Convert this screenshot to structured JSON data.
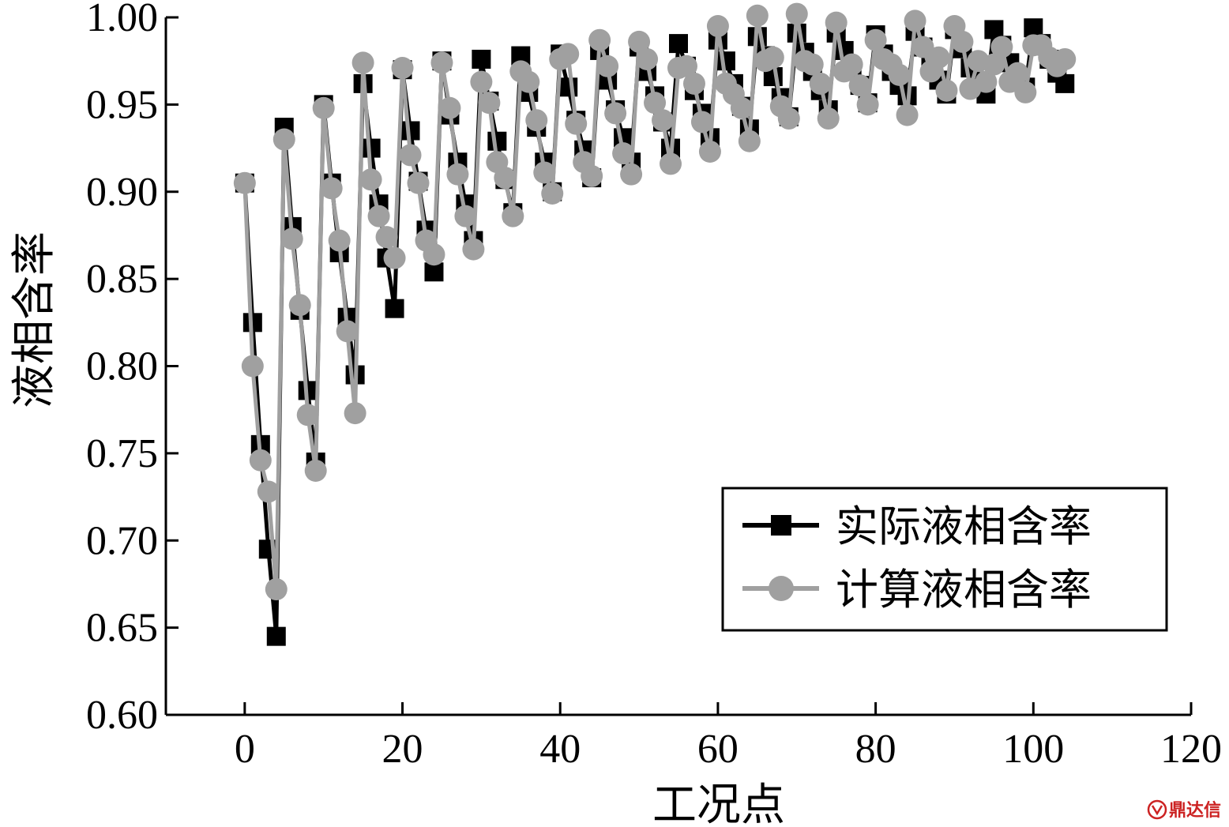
{
  "chart_data": {
    "type": "line",
    "title": "",
    "xlabel": "工况点",
    "ylabel": "液相含率",
    "xlim": [
      -10,
      120
    ],
    "ylim": [
      0.6,
      1.0
    ],
    "xticks": [
      "0",
      "20",
      "40",
      "60",
      "80",
      "100",
      "120"
    ],
    "yticks": [
      "0.60",
      "0.65",
      "0.70",
      "0.75",
      "0.80",
      "0.85",
      "0.90",
      "0.95",
      "1.00"
    ],
    "grid": false,
    "legend_position": "lower-right",
    "series": [
      {
        "name": "实际液相含率",
        "marker": "square",
        "color": "#000000",
        "x": [
          0,
          1,
          2,
          3,
          4,
          5,
          6,
          7,
          8,
          9,
          10,
          11,
          12,
          13,
          14,
          15,
          16,
          17,
          18,
          19,
          20,
          21,
          22,
          23,
          24,
          25,
          26,
          27,
          28,
          29,
          30,
          31,
          32,
          33,
          34,
          35,
          36,
          37,
          38,
          39,
          40,
          41,
          42,
          43,
          44,
          45,
          46,
          47,
          48,
          49,
          50,
          51,
          52,
          53,
          54,
          55,
          56,
          57,
          58,
          59,
          60,
          61,
          62,
          63,
          64,
          65,
          66,
          67,
          68,
          69,
          70,
          71,
          72,
          73,
          74,
          75,
          76,
          77,
          78,
          79,
          80,
          81,
          82,
          83,
          84,
          85,
          86,
          87,
          88,
          89,
          90,
          91,
          92,
          93,
          94,
          95,
          96,
          97,
          98,
          99,
          100,
          101,
          102,
          103,
          104
        ],
        "values": [
          0.905,
          0.825,
          0.755,
          0.695,
          0.645,
          0.937,
          0.88,
          0.832,
          0.786,
          0.745,
          0.95,
          0.905,
          0.865,
          0.828,
          0.795,
          0.962,
          0.925,
          0.893,
          0.862,
          0.833,
          0.97,
          0.935,
          0.906,
          0.878,
          0.854,
          0.975,
          0.944,
          0.917,
          0.893,
          0.872,
          0.976,
          0.952,
          0.929,
          0.907,
          0.888,
          0.978,
          0.957,
          0.937,
          0.917,
          0.9,
          0.979,
          0.96,
          0.941,
          0.924,
          0.908,
          0.981,
          0.964,
          0.947,
          0.931,
          0.917,
          0.983,
          0.969,
          0.955,
          0.94,
          0.925,
          0.985,
          0.972,
          0.958,
          0.945,
          0.931,
          0.987,
          0.975,
          0.962,
          0.949,
          0.936,
          0.989,
          0.978,
          0.966,
          0.954,
          0.943,
          0.991,
          0.98,
          0.969,
          0.958,
          0.947,
          0.991,
          0.981,
          0.971,
          0.961,
          0.951,
          0.99,
          0.979,
          0.969,
          0.961,
          0.955,
          0.992,
          0.983,
          0.973,
          0.964,
          0.956,
          0.993,
          0.982,
          0.971,
          0.963,
          0.956,
          0.993,
          0.984,
          0.974,
          0.966,
          0.96,
          0.994,
          0.985,
          0.976,
          0.968,
          0.962
        ]
      },
      {
        "name": "计算液相含率",
        "marker": "circle",
        "color": "#a0a0a0",
        "x": [
          0,
          1,
          2,
          3,
          4,
          5,
          6,
          7,
          8,
          9,
          10,
          11,
          12,
          13,
          14,
          15,
          16,
          17,
          18,
          19,
          20,
          21,
          22,
          23,
          24,
          25,
          26,
          27,
          28,
          29,
          30,
          31,
          32,
          33,
          34,
          35,
          36,
          37,
          38,
          39,
          40,
          41,
          42,
          43,
          44,
          45,
          46,
          47,
          48,
          49,
          50,
          51,
          52,
          53,
          54,
          55,
          56,
          57,
          58,
          59,
          60,
          61,
          62,
          63,
          64,
          65,
          66,
          67,
          68,
          69,
          70,
          71,
          72,
          73,
          74,
          75,
          76,
          77,
          78,
          79,
          80,
          81,
          82,
          83,
          84,
          85,
          86,
          87,
          88,
          89,
          90,
          91,
          92,
          93,
          94,
          95,
          96,
          97,
          98,
          99,
          100,
          101,
          102,
          103,
          104
        ],
        "values": [
          0.905,
          0.8,
          0.746,
          0.728,
          0.672,
          0.93,
          0.873,
          0.835,
          0.772,
          0.74,
          0.948,
          0.902,
          0.872,
          0.82,
          0.773,
          0.974,
          0.907,
          0.886,
          0.874,
          0.862,
          0.971,
          0.921,
          0.905,
          0.872,
          0.864,
          0.974,
          0.948,
          0.91,
          0.886,
          0.867,
          0.963,
          0.951,
          0.917,
          0.908,
          0.886,
          0.969,
          0.963,
          0.941,
          0.911,
          0.899,
          0.976,
          0.979,
          0.939,
          0.917,
          0.909,
          0.987,
          0.972,
          0.945,
          0.922,
          0.91,
          0.986,
          0.976,
          0.951,
          0.941,
          0.916,
          0.971,
          0.972,
          0.962,
          0.94,
          0.923,
          0.995,
          0.962,
          0.956,
          0.948,
          0.929,
          1.001,
          0.975,
          0.977,
          0.949,
          0.942,
          1.002,
          0.975,
          0.973,
          0.962,
          0.942,
          0.997,
          0.969,
          0.973,
          0.961,
          0.95,
          0.987,
          0.976,
          0.973,
          0.967,
          0.944,
          0.998,
          0.983,
          0.969,
          0.977,
          0.958,
          0.995,
          0.986,
          0.959,
          0.975,
          0.963,
          0.973,
          0.983,
          0.963,
          0.968,
          0.957,
          0.984,
          0.984,
          0.977,
          0.972,
          0.976
        ]
      }
    ]
  },
  "watermark": {
    "text": "鼎达信",
    "color": "#cc2222"
  }
}
